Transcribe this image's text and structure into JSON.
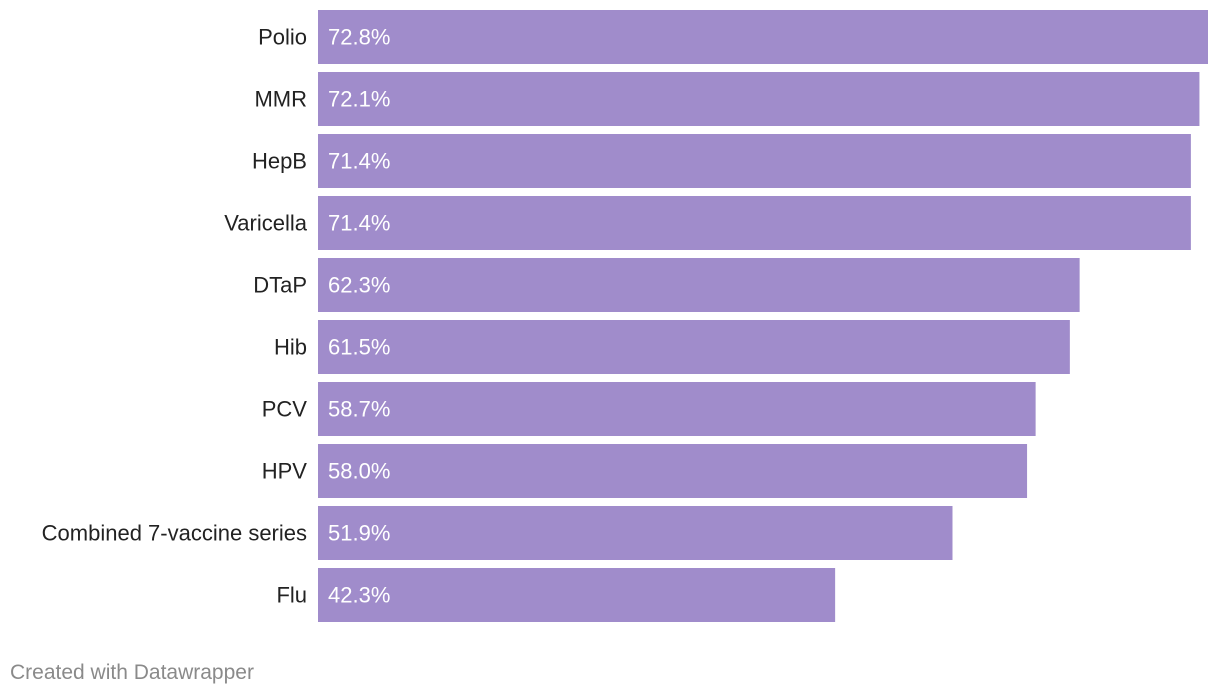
{
  "chart_data": {
    "type": "bar",
    "orientation": "horizontal",
    "categories": [
      "Polio",
      "MMR",
      "HepB",
      "Varicella",
      "DTaP",
      "Hib",
      "PCV",
      "HPV",
      "Combined 7-vaccine series",
      "Flu"
    ],
    "values": [
      72.8,
      72.1,
      71.4,
      71.4,
      62.3,
      61.5,
      58.7,
      58.0,
      51.9,
      42.3
    ],
    "value_labels": [
      "72.8%",
      "72.1%",
      "71.4%",
      "71.4%",
      "62.3%",
      "61.5%",
      "58.7%",
      "58.0%",
      "51.9%",
      "42.3%"
    ],
    "value_suffix": "%",
    "xlim": [
      0,
      72.8
    ],
    "grid": false,
    "legend": "none",
    "bar_color": "#a08ccb",
    "title": "",
    "xlabel": "",
    "ylabel": ""
  },
  "footer": {
    "credit": "Created with Datawrapper"
  },
  "colors": {
    "bar": "#a08ccb",
    "label_text": "#222222",
    "value_text": "#ffffff",
    "footer_text": "#8a8a8a"
  }
}
